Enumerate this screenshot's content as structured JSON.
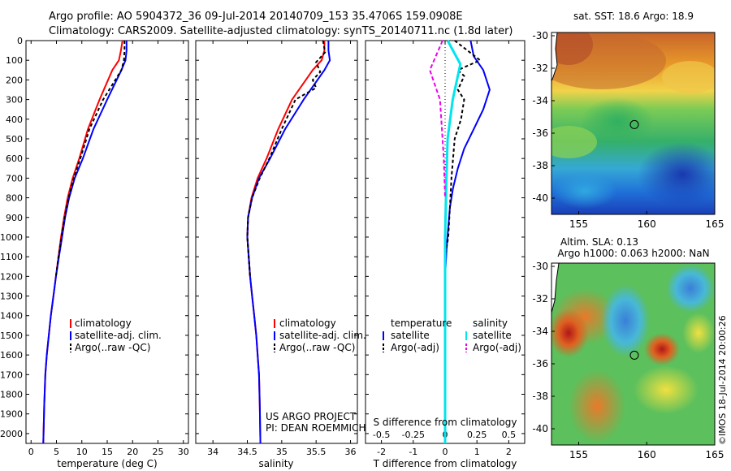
{
  "header": {
    "line1": "Argo profile: AO 5904372_36 09-Jul-2014 20140709_153 35.4706S 159.0908E",
    "line2": "Climatology: CARS2009. Satellite-adjusted climatology: synTS_20140711.nc (1.8d later)"
  },
  "colors": {
    "climatology": "#ff0000",
    "satellite": "#0000ff",
    "argo": "#000000",
    "sat_s": "#00e5ee",
    "argo_s": "#ee00ee"
  },
  "chart_data": [
    {
      "id": "temperature",
      "type": "line",
      "xlabel": "temperature (deg C)",
      "ylabel": "",
      "xlim": [
        -1,
        31
      ],
      "ylim": [
        0,
        2050
      ],
      "xticks": [
        0,
        5,
        10,
        15,
        20,
        25,
        30
      ],
      "yticks": [
        0,
        100,
        200,
        300,
        400,
        500,
        600,
        700,
        800,
        900,
        1000,
        1100,
        1200,
        1300,
        1400,
        1500,
        1600,
        1700,
        1800,
        1900,
        2000
      ],
      "legend": [
        "climatology",
        "satellite-adj. clim.",
        "Argo(..raw -QC)"
      ],
      "series": [
        {
          "name": "climatology",
          "x": [
            18.0,
            17.7,
            17.3,
            16.0,
            13.5,
            11.2,
            9.5,
            8.2,
            7.2,
            6.5,
            5.9,
            5.4,
            4.9,
            4.4,
            3.9,
            3.5,
            3.1,
            2.8,
            2.6,
            2.4
          ],
          "y": [
            0,
            50,
            100,
            150,
            300,
            450,
            600,
            700,
            800,
            900,
            1000,
            1100,
            1200,
            1300,
            1400,
            1500,
            1600,
            1700,
            1850,
            2050
          ]
        },
        {
          "name": "satellite-adj. clim.",
          "x": [
            18.8,
            18.8,
            18.6,
            17.8,
            15.0,
            12.3,
            10.2,
            8.6,
            7.5,
            6.7,
            6.1,
            5.5,
            4.9,
            4.4,
            3.9,
            3.5,
            3.1,
            2.8,
            2.6,
            2.4
          ],
          "y": [
            0,
            50,
            100,
            150,
            300,
            450,
            600,
            700,
            800,
            900,
            1000,
            1100,
            1200,
            1300,
            1400,
            1500,
            1600,
            1700,
            1850,
            2050
          ]
        },
        {
          "name": "Argo(..raw -QC)",
          "x": [
            18.4,
            18.4,
            18.3,
            17.8,
            14.2,
            11.5,
            9.7,
            8.4,
            7.4,
            6.6,
            6.0,
            5.4,
            4.9
          ],
          "y": [
            0,
            50,
            100,
            150,
            300,
            450,
            600,
            700,
            800,
            900,
            1000,
            1100,
            1200
          ]
        }
      ]
    },
    {
      "id": "salinity",
      "type": "line",
      "xlabel": "salinity",
      "ylabel": "",
      "xlim": [
        33.75,
        36.1
      ],
      "ylim": [
        0,
        2050
      ],
      "xticks": [
        34,
        34.5,
        35,
        35.5,
        36
      ],
      "legend": [
        "climatology",
        "satellite-adj. clim.",
        "Argo(..raw -QC)"
      ],
      "annotation": [
        "US ARGO PROJECT",
        "PI: DEAN ROEMMICH"
      ],
      "series": [
        {
          "name": "climatology",
          "x": [
            35.62,
            35.62,
            35.58,
            35.45,
            35.15,
            34.95,
            34.78,
            34.65,
            34.56,
            34.51,
            34.5,
            34.52,
            34.54,
            34.57,
            34.6,
            34.63,
            34.65,
            34.67,
            34.68,
            34.69
          ],
          "y": [
            0,
            50,
            100,
            150,
            300,
            450,
            600,
            700,
            800,
            900,
            1000,
            1100,
            1200,
            1300,
            1400,
            1500,
            1600,
            1700,
            1850,
            2050
          ]
        },
        {
          "name": "satellite-adj. clim.",
          "x": [
            35.68,
            35.68,
            35.7,
            35.62,
            35.32,
            35.05,
            34.83,
            34.67,
            34.57,
            34.51,
            34.5,
            34.52,
            34.54,
            34.57,
            34.6,
            34.63,
            34.65,
            34.67,
            34.68,
            34.69
          ],
          "y": [
            0,
            50,
            100,
            150,
            300,
            450,
            600,
            700,
            800,
            900,
            1000,
            1100,
            1200,
            1300,
            1400,
            1500,
            1600,
            1700,
            1850,
            2050
          ]
        },
        {
          "name": "Argo(..raw -QC)",
          "x": [
            35.6,
            35.63,
            35.5,
            35.56,
            35.45,
            35.5,
            35.2,
            35.0,
            34.82,
            34.68,
            34.57,
            34.51,
            34.5,
            34.52,
            34.54
          ],
          "y": [
            0,
            60,
            110,
            160,
            200,
            240,
            300,
            450,
            600,
            700,
            800,
            900,
            1000,
            1100,
            1200
          ]
        }
      ]
    },
    {
      "id": "differences",
      "type": "line",
      "xlabel": "T difference from climatology",
      "xlabel_top": "S difference from climatology",
      "xlim": [
        -2.5,
        2.5
      ],
      "ylim": [
        0,
        2050
      ],
      "xticks": [
        -2,
        -1,
        0,
        1,
        2
      ],
      "xticks_s": [
        -0.5,
        -0.25,
        0,
        0.25,
        0.5
      ],
      "legend_headers": [
        "temperature",
        "salinity"
      ],
      "legend": [
        "satellite",
        "Argo(-adj)",
        "satellite",
        "Argo(-adj)"
      ],
      "series": [
        {
          "name": "T satellite",
          "x": [
            0.8,
            0.9,
            1.2,
            1.4,
            1.2,
            0.9,
            0.6,
            0.4,
            0.25,
            0.15,
            0.1,
            0.05,
            0.0,
            0.0
          ],
          "y": [
            0,
            80,
            150,
            250,
            350,
            450,
            550,
            650,
            750,
            850,
            950,
            1050,
            1200,
            2050
          ]
        },
        {
          "name": "T Argo(-adj)",
          "x": [
            0.3,
            1.1,
            0.4,
            0.6,
            0.4,
            0.6,
            0.5,
            0.3,
            0.2,
            0.15,
            0.1,
            0.0
          ],
          "y": [
            0,
            100,
            150,
            180,
            250,
            300,
            400,
            500,
            700,
            850,
            1000,
            1100
          ]
        },
        {
          "name": "S satellite",
          "x": [
            0.02,
            0.12,
            0.06,
            0.02,
            0.01,
            0.0,
            0.0
          ],
          "y": [
            0,
            120,
            300,
            500,
            700,
            1000,
            2050
          ]
        },
        {
          "name": "S Argo(-adj)",
          "x": [
            -0.02,
            -0.12,
            -0.04,
            -0.03,
            -0.01,
            0.0
          ],
          "y": [
            0,
            150,
            300,
            400,
            600,
            800
          ]
        }
      ]
    },
    {
      "id": "sst_map",
      "type": "heatmap",
      "title": "sat. SST: 18.6 Argo: 18.9",
      "xlim": [
        153,
        165
      ],
      "ylim": [
        -41,
        -29.8
      ],
      "xticks": [
        155,
        160,
        165
      ],
      "yticks": [
        -30,
        -32,
        -34,
        -36,
        -38,
        -40
      ],
      "marker": {
        "lon": 159.09,
        "lat": -35.47
      }
    },
    {
      "id": "sla_map",
      "type": "heatmap",
      "title": "Altim. SLA: 0.13",
      "subtitle": "Argo h1000: 0.063 h2000: NaN",
      "xlim": [
        153,
        165
      ],
      "ylim": [
        -41,
        -29.8
      ],
      "xticks": [
        155,
        160,
        165
      ],
      "yticks": [
        -30,
        -32,
        -34,
        -36,
        -38,
        -40
      ],
      "marker": {
        "lon": 159.09,
        "lat": -35.47
      }
    }
  ],
  "side_note": "©IMOS 18-Jul-2014 20:00:26"
}
